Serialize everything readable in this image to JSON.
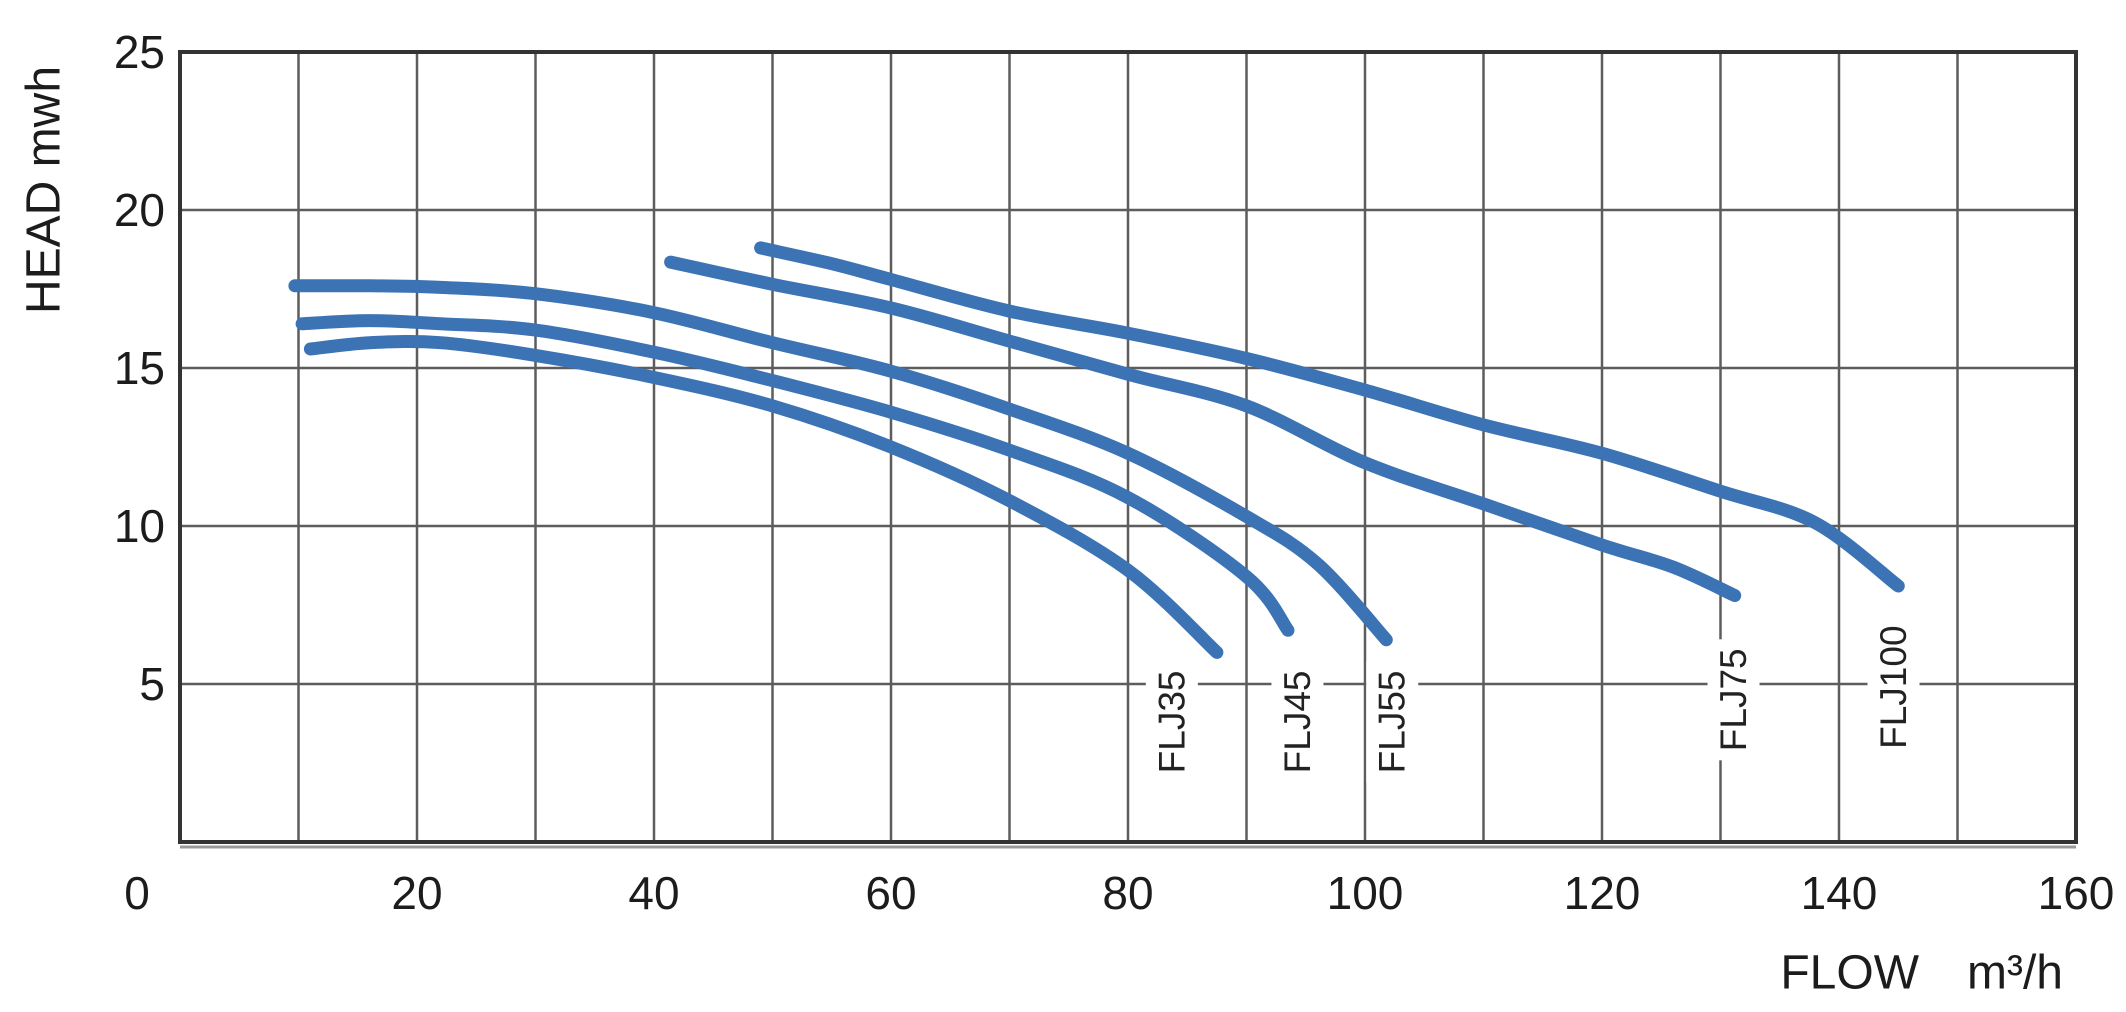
{
  "chart_data": {
    "type": "line",
    "title": "",
    "xlabel": "FLOW  m³/h",
    "ylabel": "HEAD mwh",
    "xlim": [
      0,
      160
    ],
    "ylim": [
      0,
      25
    ],
    "x_ticks": [
      0,
      20,
      40,
      60,
      80,
      100,
      120,
      140,
      160
    ],
    "y_ticks": [
      5,
      10,
      15,
      20,
      25
    ],
    "x_grid_step": 10,
    "y_grid_step": 5,
    "grid": "on",
    "legend_position": "labels-on-plot",
    "colors": {
      "curve": "#3b73b4",
      "grid": "#5d5d5d",
      "border": "#333333",
      "text": "#1c1c1c"
    },
    "series": [
      {
        "name": "FLJ35",
        "label_at": [
          83.7,
          3.8
        ],
        "points": [
          [
            11,
            15.6
          ],
          [
            16,
            15.8
          ],
          [
            22,
            15.8
          ],
          [
            30,
            15.4
          ],
          [
            40,
            14.7
          ],
          [
            50,
            13.8
          ],
          [
            60,
            12.5
          ],
          [
            70,
            10.8
          ],
          [
            80,
            8.6
          ],
          [
            87.5,
            6.0
          ]
        ]
      },
      {
        "name": "FLJ45",
        "label_at": [
          94.3,
          3.8
        ],
        "points": [
          [
            10.3,
            16.4
          ],
          [
            16,
            16.5
          ],
          [
            22,
            16.4
          ],
          [
            30,
            16.2
          ],
          [
            40,
            15.5
          ],
          [
            50,
            14.6
          ],
          [
            60,
            13.6
          ],
          [
            70,
            12.4
          ],
          [
            80,
            10.9
          ],
          [
            90,
            8.4
          ],
          [
            93.5,
            6.7
          ]
        ]
      },
      {
        "name": "FLJ55",
        "label_at": [
          102.3,
          3.8
        ],
        "points": [
          [
            9.7,
            17.6
          ],
          [
            16,
            17.6
          ],
          [
            22,
            17.55
          ],
          [
            30,
            17.35
          ],
          [
            40,
            16.75
          ],
          [
            50,
            15.8
          ],
          [
            60,
            14.9
          ],
          [
            70,
            13.7
          ],
          [
            80,
            12.3
          ],
          [
            90,
            10.3
          ],
          [
            96,
            8.8
          ],
          [
            101.8,
            6.4
          ]
        ]
      },
      {
        "name": "FLJ75",
        "label_at": [
          131.1,
          4.5
        ],
        "points": [
          [
            41.4,
            18.35
          ],
          [
            50,
            17.65
          ],
          [
            60,
            16.9
          ],
          [
            70,
            15.85
          ],
          [
            80,
            14.8
          ],
          [
            90,
            13.8
          ],
          [
            100,
            12.0
          ],
          [
            110,
            10.7
          ],
          [
            120,
            9.4
          ],
          [
            126,
            8.7
          ],
          [
            131.2,
            7.8
          ]
        ]
      },
      {
        "name": "FLJ100",
        "label_at": [
          144.6,
          4.9
        ],
        "points": [
          [
            49,
            18.8
          ],
          [
            55,
            18.3
          ],
          [
            60,
            17.8
          ],
          [
            70,
            16.8
          ],
          [
            80,
            16.1
          ],
          [
            90,
            15.3
          ],
          [
            100,
            14.3
          ],
          [
            110,
            13.2
          ],
          [
            120,
            12.3
          ],
          [
            130,
            11.1
          ],
          [
            138,
            10.1
          ],
          [
            145,
            8.1
          ]
        ]
      }
    ]
  }
}
